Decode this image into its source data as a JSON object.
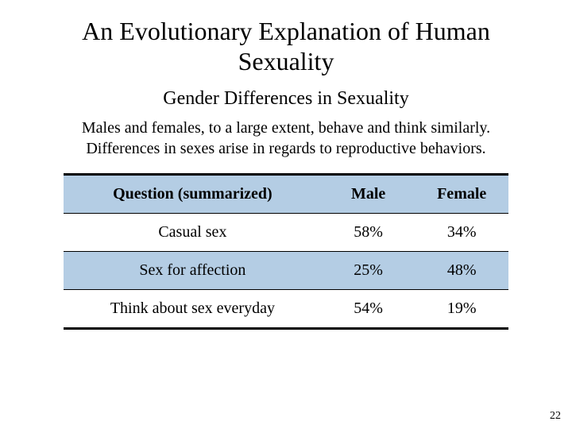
{
  "title": "An Evolutionary Explanation of Human Sexuality",
  "subtitle": "Gender Differences in Sexuality",
  "body_text": "Males and females, to a large extent, behave and think similarly. Differences in sexes arise in regards to reproductive behaviors.",
  "table": {
    "type": "table",
    "columns": [
      "Question (summarized)",
      "Male",
      "Female"
    ],
    "rows": [
      {
        "question": "Casual sex",
        "male": "58%",
        "female": "34%",
        "alt": false
      },
      {
        "question": "Sex for affection",
        "male": "25%",
        "female": "48%",
        "alt": true
      },
      {
        "question": "Think about sex everyday",
        "male": "54%",
        "female": "19%",
        "alt": false
      }
    ],
    "header_bg": "#b4cde4",
    "alt_row_bg": "#b4cde4",
    "border_color": "#000000",
    "top_border_width": 3,
    "row_border_width": 1.5,
    "bottom_border_width": 3,
    "font_size": 20,
    "col_widths_pct": [
      58,
      21,
      21
    ]
  },
  "page_number": "22",
  "styling": {
    "background_color": "#ffffff",
    "text_color": "#000000",
    "title_fontsize": 32,
    "subtitle_fontsize": 24,
    "body_fontsize": 20,
    "font_family": "Palatino Linotype"
  }
}
